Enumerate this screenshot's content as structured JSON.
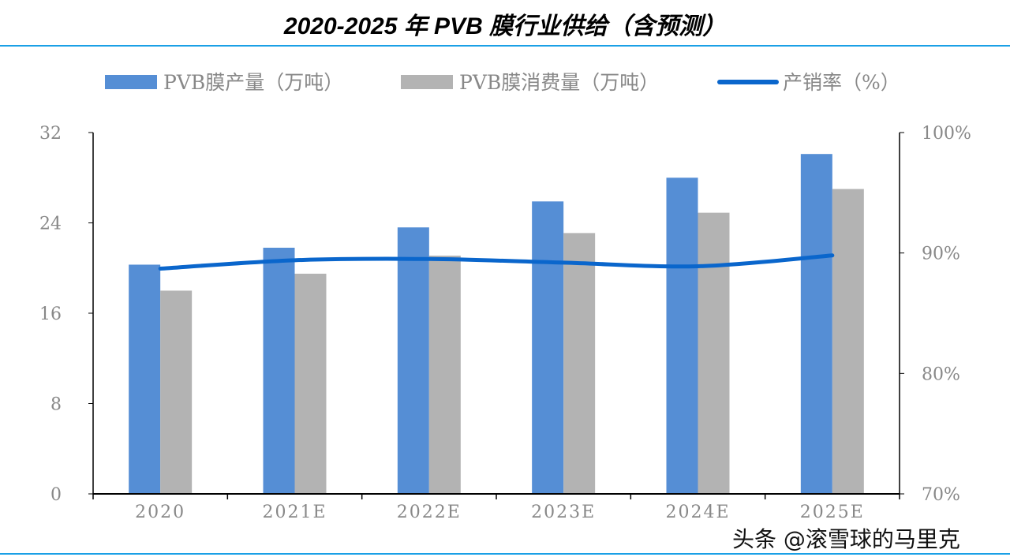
{
  "chart_data": {
    "type": "bar",
    "title": "2020-2025 年 PVB 膜行业供给（含预测）",
    "categories": [
      "2020",
      "2021E",
      "2022E",
      "2023E",
      "2024E",
      "2025E"
    ],
    "series": [
      {
        "name": "PVB膜产量（万吨）",
        "type": "bar",
        "axis": "left",
        "color": "#558ed5",
        "values": [
          20.3,
          21.8,
          23.6,
          25.9,
          28.0,
          30.1
        ]
      },
      {
        "name": "PVB膜消费量（万吨）",
        "type": "bar",
        "axis": "left",
        "color": "#b3b3b3",
        "values": [
          18.0,
          19.5,
          21.1,
          23.1,
          24.9,
          27.0
        ]
      },
      {
        "name": "产销率（%）",
        "type": "line",
        "axis": "right",
        "color": "#0a66cc",
        "values": [
          88.7,
          89.4,
          89.5,
          89.2,
          88.9,
          89.8
        ]
      }
    ],
    "left_axis": {
      "ylim": [
        0,
        32
      ],
      "ticks": [
        "0",
        "8",
        "16",
        "24",
        "32"
      ]
    },
    "right_axis": {
      "ylim": [
        70,
        100
      ],
      "ticks": [
        "70%",
        "80%",
        "90%",
        "100%"
      ]
    },
    "legend_position": "top",
    "grid": false
  },
  "watermark": "头条 @滚雪球的马里克"
}
